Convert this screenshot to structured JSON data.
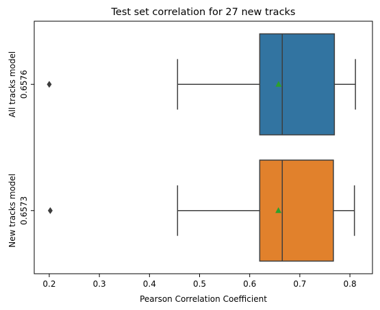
{
  "chart_data": {
    "type": "box",
    "orientation": "horizontal",
    "title": "Test set correlation for 27 new tracks",
    "xlabel": "Pearson Correlation Coefficient",
    "ylabel": "",
    "xlim": [
      0.17,
      0.845
    ],
    "xticks": [
      0.2,
      0.3,
      0.4,
      0.5,
      0.6,
      0.7,
      0.8
    ],
    "xtick_labels": [
      "0.2",
      "0.3",
      "0.4",
      "0.5",
      "0.6",
      "0.7",
      "0.8"
    ],
    "grid": false,
    "legend": "none",
    "series": [
      {
        "label_line1": "All tracks model",
        "label_line2": "0.6576",
        "color": "#3274a1",
        "whisker_low": 0.456,
        "q1": 0.62,
        "median": 0.665,
        "q3": 0.769,
        "whisker_high": 0.811,
        "mean": 0.6576,
        "outliers": [
          0.2
        ]
      },
      {
        "label_line1": "New tracks model",
        "label_line2": "0.6573",
        "color": "#e1812c",
        "whisker_low": 0.456,
        "q1": 0.62,
        "median": 0.665,
        "q3": 0.767,
        "whisker_high": 0.809,
        "mean": 0.6573,
        "outliers": [
          0.202
        ]
      }
    ],
    "mean_marker_color": "#2ca02c",
    "line_color": "#3d3d3d"
  }
}
